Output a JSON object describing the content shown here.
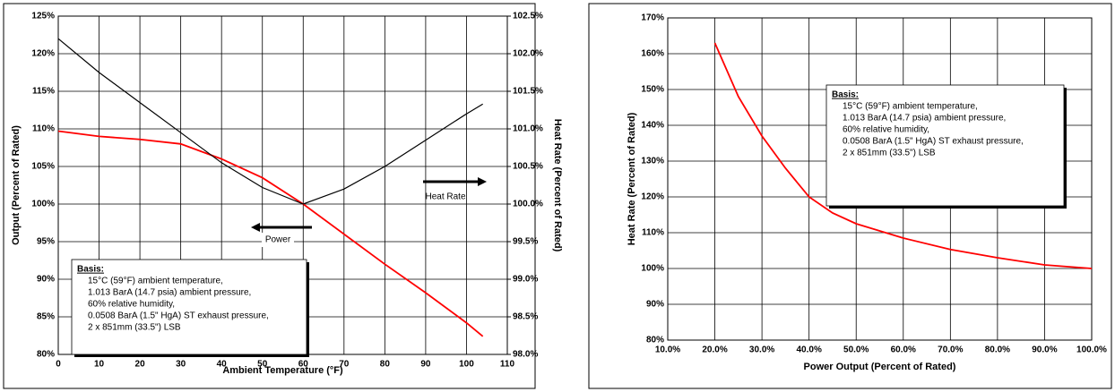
{
  "chart_data": [
    {
      "type": "line",
      "xlabel": "Ambient Temperature (°F)",
      "ylabel": "Output (Percent of Rated)",
      "y2label": "Heat Rate (Percent of Rated)",
      "x": [
        0,
        10,
        20,
        30,
        40,
        50,
        60,
        70,
        80,
        90,
        100,
        104
      ],
      "series": [
        {
          "name": "Power",
          "color": "#ff0000",
          "axis": "y",
          "values": [
            109.7,
            109.0,
            108.6,
            108.0,
            106.0,
            103.5,
            100.0,
            96.0,
            92.0,
            88.2,
            84.2,
            82.4
          ]
        },
        {
          "name": "Heat Rate",
          "color": "#000000",
          "axis": "y2",
          "values": [
            102.2,
            101.75,
            101.35,
            100.95,
            100.55,
            100.22,
            100.0,
            100.2,
            100.5,
            100.85,
            101.2,
            101.33
          ]
        }
      ],
      "xlim": [
        0,
        110
      ],
      "xticks": [
        0,
        10,
        20,
        30,
        40,
        50,
        60,
        70,
        80,
        90,
        100,
        110
      ],
      "ylim": [
        80,
        125
      ],
      "yticks": [
        {
          "value": 80,
          "label": "80%"
        },
        {
          "value": 85,
          "label": "85%"
        },
        {
          "value": 90,
          "label": "90%"
        },
        {
          "value": 95,
          "label": "95%"
        },
        {
          "value": 100,
          "label": "100%"
        },
        {
          "value": 105,
          "label": "105%"
        },
        {
          "value": 110,
          "label": "110%"
        },
        {
          "value": 115,
          "label": "115%"
        },
        {
          "value": 120,
          "label": "120%"
        },
        {
          "value": 125,
          "label": "125%"
        }
      ],
      "y2lim": [
        98.0,
        102.5
      ],
      "y2ticks": [
        {
          "value": 98.0,
          "label": "98.0%"
        },
        {
          "value": 98.5,
          "label": "98.5%"
        },
        {
          "value": 99.0,
          "label": "99.0%"
        },
        {
          "value": 99.5,
          "label": "99.5%"
        },
        {
          "value": 100.0,
          "label": "100.0%"
        },
        {
          "value": 100.5,
          "label": "100.5%"
        },
        {
          "value": 101.0,
          "label": "101.0%"
        },
        {
          "value": 101.5,
          "label": "101.5%"
        },
        {
          "value": 102.0,
          "label": "102.0%"
        },
        {
          "value": 102.5,
          "label": "102.5%"
        }
      ],
      "grid": true,
      "basis": {
        "title": "Basis:",
        "lines": [
          "15°C (59°F) ambient temperature,",
          "1.013 BarA (14.7 psia) ambient pressure,",
          "60% relative humidity,",
          "0.0508 BarA (1.5\" HgA) ST exhaust pressure,",
          "2 x 851mm (33.5\")  LSB"
        ]
      }
    },
    {
      "type": "line",
      "xlabel": "Power Output (Percent of Rated)",
      "ylabel": "Heat Rate (Percent of Rated)",
      "x": [
        20,
        25,
        30,
        35,
        40,
        45,
        50,
        60,
        70,
        80,
        90,
        100
      ],
      "series": [
        {
          "color": "#ff0000",
          "values": [
            163,
            148,
            137,
            128,
            120,
            115.5,
            112.5,
            108.5,
            105.3,
            103,
            101,
            100
          ]
        }
      ],
      "xlim": [
        10,
        100
      ],
      "xticks": [
        {
          "value": 10,
          "label": "10.0%"
        },
        {
          "value": 20,
          "label": "20.0%"
        },
        {
          "value": 30,
          "label": "30.0%"
        },
        {
          "value": 40,
          "label": "40.0%"
        },
        {
          "value": 50,
          "label": "50.0%"
        },
        {
          "value": 60,
          "label": "60.0%"
        },
        {
          "value": 70,
          "label": "70.0%"
        },
        {
          "value": 80,
          "label": "80.0%"
        },
        {
          "value": 90,
          "label": "90.0%"
        },
        {
          "value": 100,
          "label": "100.0%"
        }
      ],
      "ylim": [
        80,
        170
      ],
      "yticks": [
        {
          "value": 80,
          "label": "80%"
        },
        {
          "value": 90,
          "label": "90%"
        },
        {
          "value": 100,
          "label": "100%"
        },
        {
          "value": 110,
          "label": "110%"
        },
        {
          "value": 120,
          "label": "120%"
        },
        {
          "value": 130,
          "label": "130%"
        },
        {
          "value": 140,
          "label": "140%"
        },
        {
          "value": 150,
          "label": "150%"
        },
        {
          "value": 160,
          "label": "160%"
        },
        {
          "value": 170,
          "label": "170%"
        }
      ],
      "grid": true,
      "basis": {
        "title": "Basis:",
        "lines": [
          "15°C (59°F) ambient temperature,",
          "1.013 BarA (14.7 psia) ambient pressure,",
          "60% relative humidity,",
          "0.0508 BarA (1.5\" HgA) ST exhaust pressure,",
          "2 x 851mm (33.5\")  LSB"
        ]
      }
    }
  ]
}
